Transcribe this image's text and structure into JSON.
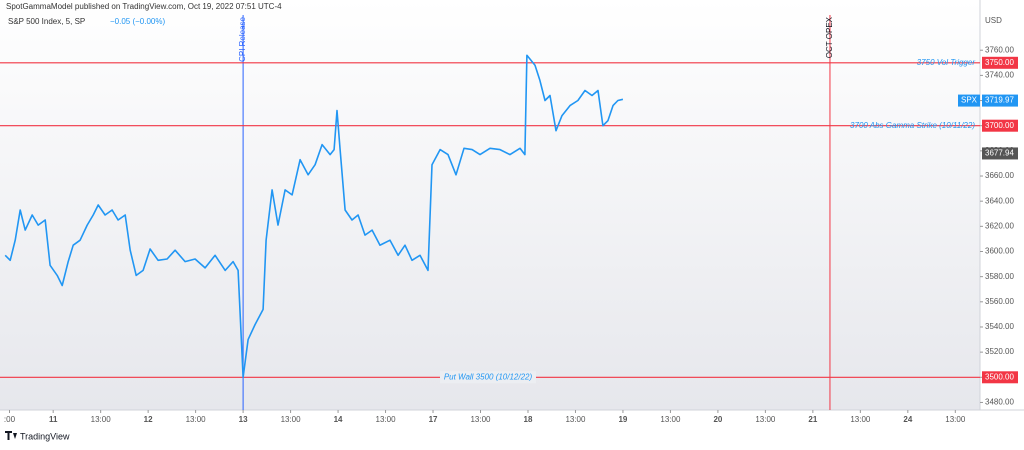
{
  "chart_data": {
    "type": "line",
    "publisher": "SpotGammaModel published on TradingView.com, Oct 19, 2022 07:51 UTC-4",
    "symbol": "S&P 500 Index, 5, SP",
    "change": "−0.05 (−0.00%)",
    "currency": "USD",
    "footer": "TradingView",
    "color": "#2196f3",
    "x": [
      0.495,
      0.547,
      0.6,
      0.653,
      0.705,
      0.779,
      0.842,
      0.916,
      0.968,
      1.042,
      1.095,
      1.158,
      1.211,
      1.284,
      1.358,
      1.421,
      1.474,
      1.547,
      1.621,
      1.684,
      1.758,
      1.811,
      1.874,
      1.947,
      2.021,
      2.105,
      2.2,
      2.284,
      2.389,
      2.495,
      2.6,
      2.705,
      2.811,
      2.895,
      2.947,
      3.0,
      3.053,
      3.126,
      3.211,
      3.242,
      3.305,
      3.368,
      3.442,
      3.516,
      3.6,
      3.684,
      3.758,
      3.832,
      3.916,
      3.958,
      3.989,
      4.021,
      4.074,
      4.147,
      4.211,
      4.284,
      4.358,
      4.442,
      4.547,
      4.632,
      4.705,
      4.779,
      4.863,
      4.947,
      4.989,
      5.074,
      5.158,
      5.242,
      5.326,
      5.411,
      5.495,
      5.6,
      5.705,
      5.811,
      5.916,
      5.968,
      5.989,
      6.074,
      6.126,
      6.179,
      6.232,
      6.295,
      6.358,
      6.442,
      6.526,
      6.6,
      6.674,
      6.737,
      6.789,
      6.842,
      6.895,
      6.947,
      7.0
    ],
    "values": [
      3597,
      3593,
      3609,
      3633,
      3617,
      3629,
      3621,
      3625,
      3589,
      3581,
      3573,
      3592,
      3605,
      3609,
      3621,
      3629,
      3637,
      3629,
      3633,
      3625,
      3629,
      3601,
      3581,
      3585,
      3602,
      3593,
      3594,
      3601,
      3592,
      3594,
      3587,
      3597,
      3585,
      3592,
      3585,
      3500,
      3530,
      3542,
      3554,
      3609,
      3649,
      3621,
      3649,
      3645,
      3673,
      3661,
      3669,
      3685,
      3677,
      3681,
      3712,
      3681,
      3633,
      3625,
      3629,
      3613,
      3617,
      3605,
      3609,
      3597,
      3605,
      3593,
      3597,
      3585,
      3669,
      3681,
      3677,
      3661,
      3682,
      3681,
      3677,
      3682,
      3681,
      3677,
      3682,
      3677,
      3756,
      3748,
      3736,
      3720,
      3724,
      3696,
      3708,
      3716,
      3720,
      3728,
      3724,
      3728,
      3700,
      3704,
      3716,
      3720,
      3721
    ],
    "xlim": [
      0.44,
      10.76
    ],
    "xticks": [
      {
        "value": 0.54,
        "label": ":00"
      },
      {
        "value": 1,
        "label": "11"
      },
      {
        "value": 1.5,
        "label": "13:00"
      },
      {
        "value": 2,
        "label": "12"
      },
      {
        "value": 2.5,
        "label": "13:00"
      },
      {
        "value": 3,
        "label": "13"
      },
      {
        "value": 3.5,
        "label": "13:00"
      },
      {
        "value": 4,
        "label": "14"
      },
      {
        "value": 4.5,
        "label": "13:00"
      },
      {
        "value": 5,
        "label": "17"
      },
      {
        "value": 5.5,
        "label": "13:00"
      },
      {
        "value": 6,
        "label": "18"
      },
      {
        "value": 6.5,
        "label": "13:00"
      },
      {
        "value": 7,
        "label": "19"
      },
      {
        "value": 7.5,
        "label": "13:00"
      },
      {
        "value": 8,
        "label": "20"
      },
      {
        "value": 8.5,
        "label": "13:00"
      },
      {
        "value": 9,
        "label": "21"
      },
      {
        "value": 9.5,
        "label": "13:00"
      },
      {
        "value": 10,
        "label": "24"
      },
      {
        "value": 10.5,
        "label": "13:00"
      }
    ],
    "ylim": [
      3474,
      3788
    ],
    "yticks": [
      {
        "value": 3480,
        "label": "3480.00"
      },
      {
        "value": 3500,
        "label": "3500.00"
      },
      {
        "value": 3520,
        "label": "3520.00"
      },
      {
        "value": 3540,
        "label": "3540.00"
      },
      {
        "value": 3560,
        "label": "3560.00"
      },
      {
        "value": 3580,
        "label": "3580.00"
      },
      {
        "value": 3600,
        "label": "3600.00"
      },
      {
        "value": 3620,
        "label": "3620.00"
      },
      {
        "value": 3640,
        "label": "3640.00"
      },
      {
        "value": 3660,
        "label": "3660.00"
      },
      {
        "value": 3680,
        "label": "3680.00"
      },
      {
        "value": 3700,
        "label": "3700.00"
      },
      {
        "value": 3720,
        "label": "3720.00"
      },
      {
        "value": 3740,
        "label": "3740.00"
      },
      {
        "value": 3760,
        "label": "3760.00"
      }
    ],
    "levels": [
      {
        "value": 3750,
        "label": "3750 Vol Trigger",
        "tag": "3750.00",
        "color": "#f23645"
      },
      {
        "value": 3700,
        "label": "3700 Abs Gamma Strike (10/11/22)",
        "tag": "3700.00",
        "color": "#f23645"
      },
      {
        "value": 3500,
        "label": "Put Wall 3500 (10/12/22)",
        "tag": "3500.00",
        "color": "#f23645"
      }
    ],
    "events": [
      {
        "x": 3.0,
        "label": "CPI Release",
        "color": "#2962ff"
      },
      {
        "x": 9.18,
        "label": "OCT OPEX",
        "color": "#f23645"
      }
    ],
    "price_tags": [
      {
        "value": 3719.97,
        "name": "SPX",
        "color": "#2196f3"
      },
      {
        "value": 3677.94,
        "color": "#555555"
      }
    ]
  }
}
